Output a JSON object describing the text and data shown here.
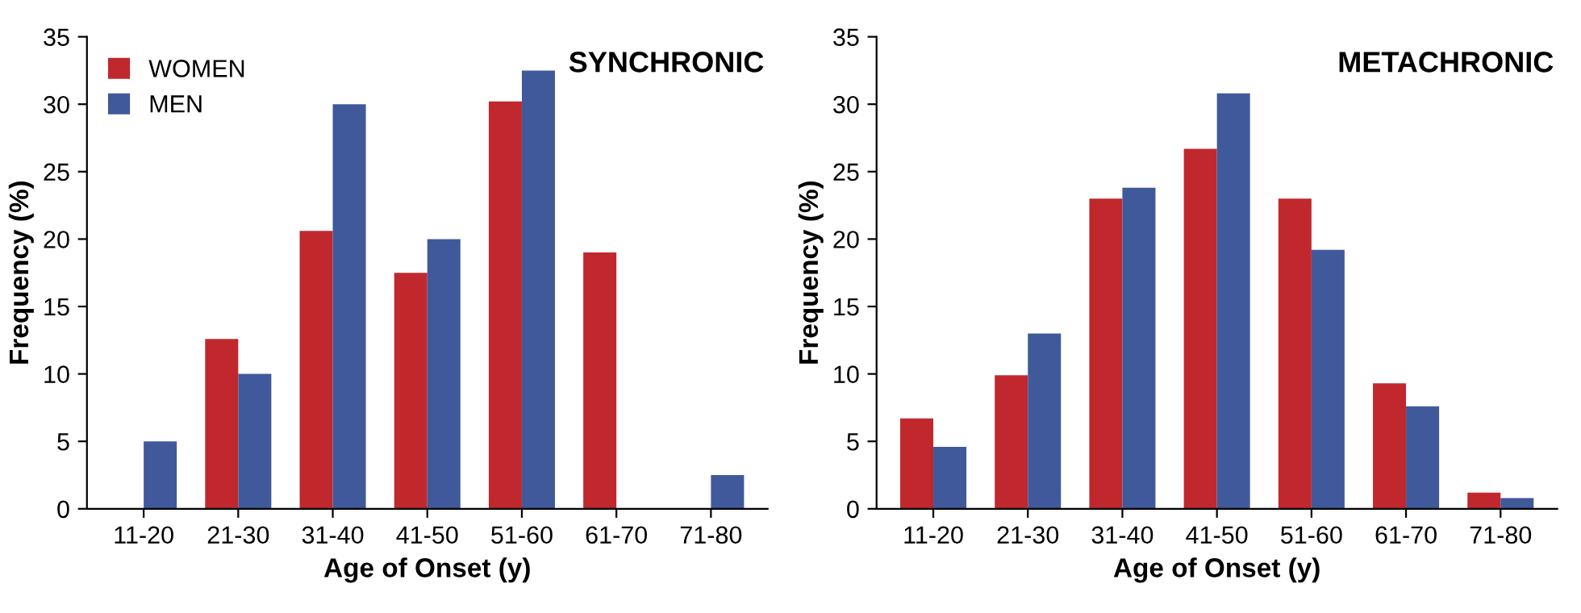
{
  "chart_data": [
    {
      "type": "bar",
      "title": "SYNCHRONIC",
      "xlabel": "Age of Onset (y)",
      "ylabel": "Frequency (%)",
      "categories": [
        "11-20",
        "21-30",
        "31-40",
        "41-50",
        "51-60",
        "61-70",
        "71-80"
      ],
      "series": [
        {
          "name": "WOMEN",
          "color": "#c0282d",
          "values": [
            0,
            12.6,
            20.6,
            17.5,
            30.2,
            19,
            0
          ]
        },
        {
          "name": "MEN",
          "color": "#40599a",
          "values": [
            5,
            10,
            30,
            20,
            32.5,
            0,
            2.5
          ]
        }
      ],
      "ylim": [
        0,
        35
      ],
      "yticks": [
        0,
        5,
        10,
        15,
        20,
        25,
        30,
        35
      ],
      "grid": false,
      "legend": "top left"
    },
    {
      "type": "bar",
      "title": "METACHRONIC",
      "xlabel": "Age of Onset (y)",
      "ylabel": "Frequency (%)",
      "categories": [
        "11-20",
        "21-30",
        "31-40",
        "41-50",
        "51-60",
        "61-70",
        "71-80"
      ],
      "series": [
        {
          "color": "#c0282d",
          "values": [
            6.7,
            9.9,
            23,
            26.7,
            23,
            9.3,
            1.2
          ]
        },
        {
          "color": "#40599a",
          "values": [
            4.6,
            13,
            23.8,
            30.8,
            19.2,
            7.6,
            0.8
          ]
        }
      ],
      "ylim": [
        0,
        35
      ],
      "yticks": [
        0,
        5,
        10,
        15,
        20,
        25,
        30,
        35
      ],
      "grid": false
    }
  ]
}
